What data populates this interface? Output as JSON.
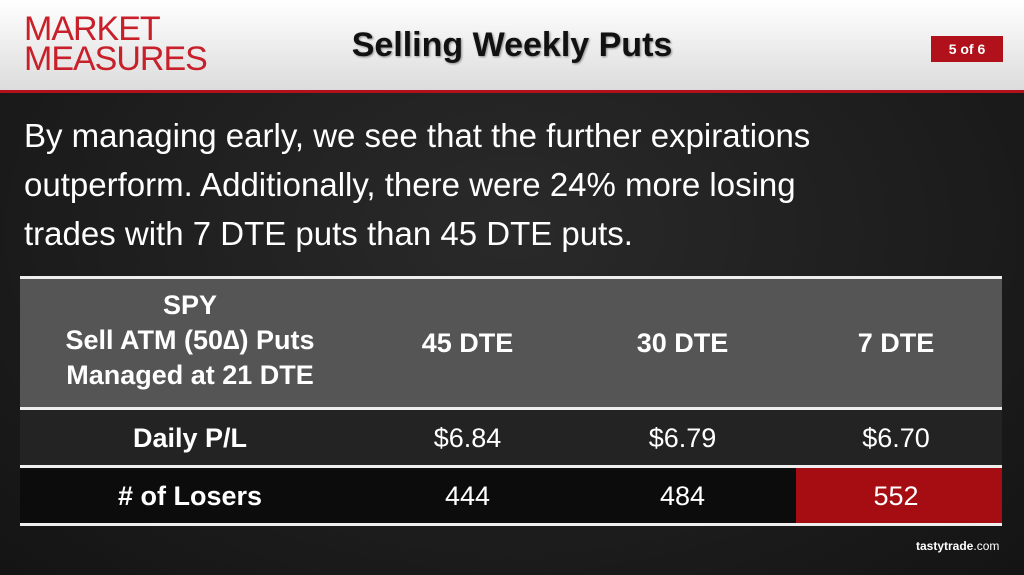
{
  "header": {
    "logo": [
      "MARKET",
      "MEASURES"
    ],
    "title": "Selling Weekly Puts",
    "page": "5 of 6"
  },
  "body": {
    "lines": [
      "By managing early, we see that the further expirations",
      "outperform. Additionally, there were 24% more losing",
      "trades with 7 DTE puts than 45 DTE puts."
    ]
  },
  "table": {
    "corner": [
      "SPY",
      "Sell ATM (50∆) Puts",
      "Managed at 21 DTE"
    ],
    "columns": [
      "45 DTE",
      "30 DTE",
      "7 DTE"
    ],
    "rows": [
      [
        "Daily P/L",
        "$6.84",
        "$6.79",
        "$6.70"
      ],
      [
        "# of Losers",
        "444",
        "484",
        "552"
      ]
    ]
  },
  "footer": {
    "brand": "tastytrade",
    "suffix": ".com"
  }
}
